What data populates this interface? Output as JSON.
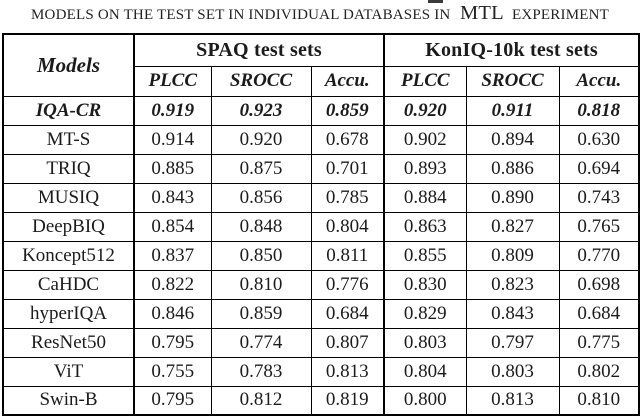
{
  "caption": {
    "prefix": "models on the test set in individual databases in",
    "highlight": "MTL",
    "suffix": "experiment"
  },
  "table": {
    "model_header": "Models",
    "groups": [
      {
        "label": "SPAQ test sets",
        "metrics": [
          "PLCC",
          "SROCC",
          "Accu."
        ]
      },
      {
        "label": "KonIQ-10k test sets",
        "metrics": [
          "PLCC",
          "SROCC",
          "Accu."
        ]
      }
    ],
    "rows": [
      {
        "model": "IQA-CR",
        "values": [
          "0.919",
          "0.923",
          "0.859",
          "0.920",
          "0.911",
          "0.818"
        ],
        "emphasis": true
      },
      {
        "model": "MT-S",
        "values": [
          "0.914",
          "0.920",
          "0.678",
          "0.902",
          "0.894",
          "0.630"
        ],
        "emphasis": false
      },
      {
        "model": "TRIQ",
        "values": [
          "0.885",
          "0.875",
          "0.701",
          "0.893",
          "0.886",
          "0.694"
        ],
        "emphasis": false
      },
      {
        "model": "MUSIQ",
        "values": [
          "0.843",
          "0.856",
          "0.785",
          "0.884",
          "0.890",
          "0.743"
        ],
        "emphasis": false
      },
      {
        "model": "DeepBIQ",
        "values": [
          "0.854",
          "0.848",
          "0.804",
          "0.863",
          "0.827",
          "0.765"
        ],
        "emphasis": false
      },
      {
        "model": "Koncept512",
        "values": [
          "0.837",
          "0.850",
          "0.811",
          "0.855",
          "0.809",
          "0.770"
        ],
        "emphasis": false
      },
      {
        "model": "CaHDC",
        "values": [
          "0.822",
          "0.810",
          "0.776",
          "0.830",
          "0.823",
          "0.698"
        ],
        "emphasis": false
      },
      {
        "model": "hyperIQA",
        "values": [
          "0.846",
          "0.859",
          "0.684",
          "0.829",
          "0.843",
          "0.684"
        ],
        "emphasis": false
      },
      {
        "model": "ResNet50",
        "values": [
          "0.795",
          "0.774",
          "0.807",
          "0.803",
          "0.797",
          "0.775"
        ],
        "emphasis": false
      },
      {
        "model": "ViT",
        "values": [
          "0.755",
          "0.783",
          "0.813",
          "0.804",
          "0.803",
          "0.802"
        ],
        "emphasis": false
      },
      {
        "model": "Swin-B",
        "values": [
          "0.795",
          "0.812",
          "0.819",
          "0.800",
          "0.813",
          "0.810"
        ],
        "emphasis": false
      }
    ]
  },
  "colors": {
    "background": "#ffffff",
    "text": "#1b1b1b",
    "border": "#000000"
  }
}
